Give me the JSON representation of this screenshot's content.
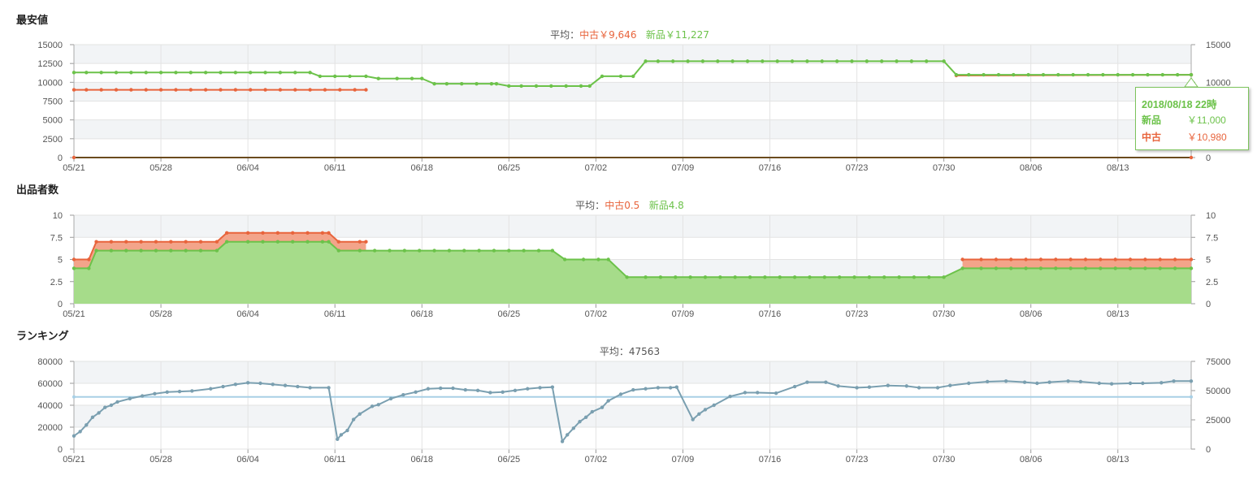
{
  "sections": {
    "price_title": "最安値",
    "sellers_title": "出品者数",
    "rank_title": "ランキング"
  },
  "averages": {
    "price_prefix": "平均：",
    "price_used": "中古￥9,646",
    "price_new": "新品￥11,227",
    "sellers_prefix": "平均：",
    "sellers_used": "中古0.5",
    "sellers_new": "新品4.8",
    "rank": "平均：47563"
  },
  "tooltip": {
    "date": "2018/08/18 22時",
    "new_label": "新品",
    "new_value": "￥11,000",
    "used_label": "中古",
    "used_value": "￥10,980"
  },
  "colors": {
    "new": "#6cc24a",
    "used": "#e8643c",
    "rank": "#7a9fb0",
    "rank_avg": "#a8d0e6"
  },
  "x_ticks": [
    "05/21",
    "05/28",
    "06/04",
    "06/11",
    "06/18",
    "06/25",
    "07/02",
    "07/09",
    "07/16",
    "07/23",
    "07/30",
    "08/06",
    "08/13"
  ],
  "chart_data": [
    {
      "type": "line",
      "name": "price",
      "ylim": [
        0,
        15000
      ],
      "y_ticks_left": [
        "15000",
        "12500",
        "10000",
        "7500",
        "5000",
        "2500",
        "0"
      ],
      "y_ticks_right": [
        "15000",
        "10000",
        "5000",
        "0"
      ],
      "series": [
        {
          "name": "新品",
          "points": [
            [
              0,
              11300
            ],
            [
              19,
              11300
            ],
            [
              19.8,
              10800
            ],
            [
              23.5,
              10800
            ],
            [
              24.5,
              10500
            ],
            [
              28,
              10500
            ],
            [
              29,
              9800
            ],
            [
              34,
              9800
            ],
            [
              35,
              9500
            ],
            [
              41.5,
              9500
            ],
            [
              42.5,
              10800
            ],
            [
              45,
              10800
            ],
            [
              46,
              12800
            ],
            [
              70,
              12800
            ],
            [
              71,
              11000
            ],
            [
              89.9,
              11000
            ]
          ]
        },
        {
          "name": "中古",
          "points": [
            [
              0,
              9000
            ],
            [
              23.5,
              9000
            ]
          ],
          "points2": [
            [
              71,
              10900
            ],
            [
              89.9,
              11000
            ]
          ]
        }
      ]
    },
    {
      "type": "area",
      "name": "sellers",
      "ylim": [
        0,
        10
      ],
      "y_ticks_left": [
        "10",
        "7.5",
        "5",
        "2.5",
        "0"
      ],
      "y_ticks_right": [
        "10",
        "7.5",
        "5",
        "2.5",
        "0"
      ],
      "series": [
        {
          "name": "新品",
          "points": [
            [
              0,
              4
            ],
            [
              1.2,
              4
            ],
            [
              1.8,
              6
            ],
            [
              11.5,
              6
            ],
            [
              12.3,
              7
            ],
            [
              20.5,
              7
            ],
            [
              21.3,
              6
            ],
            [
              38.5,
              6
            ],
            [
              39.5,
              5
            ],
            [
              43,
              5
            ],
            [
              44.5,
              3
            ],
            [
              70,
              3
            ],
            [
              71.5,
              4
            ],
            [
              89.9,
              4
            ]
          ]
        },
        {
          "name": "中古",
          "points": [
            [
              0,
              5
            ],
            [
              1.2,
              5
            ],
            [
              1.8,
              7
            ],
            [
              11.5,
              7
            ],
            [
              12.3,
              8
            ],
            [
              20.5,
              8
            ],
            [
              21.3,
              7
            ],
            [
              23.5,
              7
            ]
          ],
          "points2": [
            [
              71.5,
              5
            ],
            [
              89.9,
              5
            ]
          ]
        }
      ]
    },
    {
      "type": "line",
      "name": "ranking",
      "ylim": [
        0,
        80000
      ],
      "y_ticks_left": [
        "80000",
        "60000",
        "40000",
        "20000",
        "0"
      ],
      "y_ticks_right": [
        "75000",
        "50000",
        "25000",
        "0"
      ],
      "average": 47563,
      "series": [
        {
          "name": "rank",
          "points": [
            [
              0,
              12000
            ],
            [
              0.5,
              16000
            ],
            [
              1,
              22000
            ],
            [
              1.5,
              29000
            ],
            [
              2,
              33000
            ],
            [
              2.5,
              38000
            ],
            [
              3,
              40000
            ],
            [
              3.5,
              43000
            ],
            [
              4.5,
              46000
            ],
            [
              5.5,
              48500
            ],
            [
              6.5,
              50500
            ],
            [
              7.5,
              52000
            ],
            [
              8.5,
              52500
            ],
            [
              9.5,
              53000
            ],
            [
              11,
              55000
            ],
            [
              12,
              57000
            ],
            [
              13,
              59000
            ],
            [
              14,
              60500
            ],
            [
              15,
              60000
            ],
            [
              16,
              59000
            ],
            [
              17,
              58000
            ],
            [
              18,
              57000
            ],
            [
              19,
              56000
            ],
            [
              20.5,
              56000
            ],
            [
              21.2,
              9000
            ],
            [
              21.5,
              13000
            ],
            [
              22,
              17000
            ],
            [
              22.5,
              27000
            ],
            [
              23,
              32000
            ],
            [
              24,
              39000
            ],
            [
              24.5,
              40500
            ],
            [
              25.5,
              46000
            ],
            [
              26.5,
              49500
            ],
            [
              27.5,
              52000
            ],
            [
              28.5,
              55000
            ],
            [
              29.5,
              55500
            ],
            [
              30.5,
              55500
            ],
            [
              31.5,
              54000
            ],
            [
              32.5,
              53500
            ],
            [
              33.5,
              51500
            ],
            [
              34.5,
              52000
            ],
            [
              35.5,
              53500
            ],
            [
              36.5,
              55000
            ],
            [
              37.5,
              56000
            ],
            [
              38.5,
              56500
            ],
            [
              39.3,
              7000
            ],
            [
              39.7,
              13000
            ],
            [
              40.2,
              19000
            ],
            [
              40.7,
              25000
            ],
            [
              41.2,
              29000
            ],
            [
              41.7,
              34000
            ],
            [
              42.5,
              38000
            ],
            [
              43,
              44000
            ],
            [
              44,
              50000
            ],
            [
              45,
              54000
            ],
            [
              46,
              55000
            ],
            [
              47,
              56000
            ],
            [
              48,
              56000
            ],
            [
              48.5,
              56500
            ],
            [
              49.8,
              27000
            ],
            [
              50.3,
              32000
            ],
            [
              50.8,
              36000
            ],
            [
              51.5,
              40000
            ],
            [
              52.8,
              48000
            ],
            [
              54,
              51500
            ],
            [
              55,
              51500
            ],
            [
              56.5,
              51000
            ],
            [
              58,
              57000
            ],
            [
              59,
              61000
            ],
            [
              60.5,
              61000
            ],
            [
              61.5,
              57500
            ],
            [
              63,
              56000
            ],
            [
              64,
              56500
            ],
            [
              65.5,
              58000
            ],
            [
              67,
              57500
            ],
            [
              68,
              56000
            ],
            [
              69.5,
              56000
            ],
            [
              70.5,
              58000
            ],
            [
              72,
              60000
            ],
            [
              73.5,
              61500
            ],
            [
              75,
              62000
            ],
            [
              76.5,
              61000
            ],
            [
              77.5,
              60000
            ],
            [
              78.5,
              61000
            ],
            [
              80,
              62000
            ],
            [
              81,
              61500
            ],
            [
              82.5,
              60000
            ],
            [
              83.5,
              59500
            ],
            [
              85,
              60000
            ],
            [
              86,
              60000
            ],
            [
              87.5,
              60500
            ],
            [
              88.5,
              62000
            ],
            [
              89.9,
              62000
            ]
          ]
        }
      ]
    }
  ]
}
